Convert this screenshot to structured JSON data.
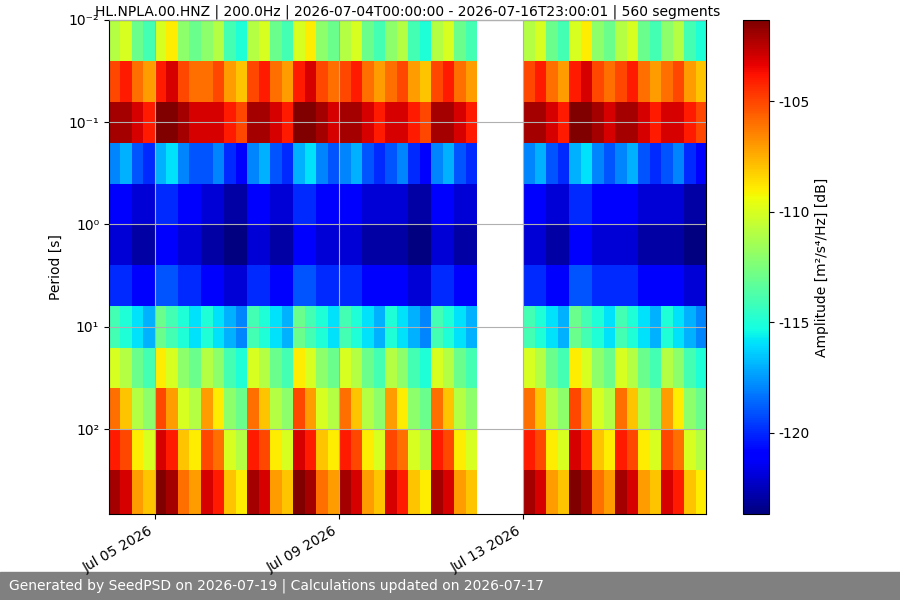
{
  "chart_data": {
    "type": "heatmap",
    "title": "HL.NPLA.00.HNZ | 200.0Hz | 2026-07-04T00:00:00 - 2026-07-16T23:00:01 | 560 segments",
    "y_label": "Period [s]",
    "colorbar_label": "Amplitude [m²/s⁴/Hz] [dB]",
    "footer": "Generated by SeedPSD on 2026-07-19 | Calculations updated on 2026-07-17",
    "log": "y",
    "grid": true,
    "color": "jet",
    "x": [
      "2026-07-04 00:00",
      "2026-07-04 06:00",
      "2026-07-04 12:00",
      "2026-07-04 18:00",
      "2026-07-05 00:00",
      "2026-07-05 06:00",
      "2026-07-05 12:00",
      "2026-07-05 18:00",
      "2026-07-06 00:00",
      "2026-07-06 06:00",
      "2026-07-06 12:00",
      "2026-07-06 18:00",
      "2026-07-07 00:00",
      "2026-07-07 06:00",
      "2026-07-07 12:00",
      "2026-07-07 18:00",
      "2026-07-08 00:00",
      "2026-07-08 06:00",
      "2026-07-08 12:00",
      "2026-07-08 18:00",
      "2026-07-09 00:00",
      "2026-07-09 06:00",
      "2026-07-09 12:00",
      "2026-07-09 18:00",
      "2026-07-10 00:00",
      "2026-07-10 06:00",
      "2026-07-10 12:00",
      "2026-07-10 18:00",
      "2026-07-11 00:00",
      "2026-07-11 06:00",
      "2026-07-11 12:00",
      "2026-07-11 18:00",
      "2026-07-12 00:00",
      "2026-07-12 06:00",
      "2026-07-12 12:00",
      "2026-07-12 18:00",
      "2026-07-13 00:00",
      "2026-07-13 06:00",
      "2026-07-13 12:00",
      "2026-07-13 18:00",
      "2026-07-14 00:00",
      "2026-07-14 06:00",
      "2026-07-14 12:00",
      "2026-07-14 18:00",
      "2026-07-15 00:00",
      "2026-07-15 06:00",
      "2026-07-15 12:00",
      "2026-07-15 18:00",
      "2026-07-16 00:00",
      "2026-07-16 06:00",
      "2026-07-16 12:00",
      "2026-07-16 18:00",
      "2026-07-17 00:00"
    ],
    "y": [
      0.01,
      0.025,
      0.063,
      0.16,
      0.4,
      1,
      2.5,
      6.3,
      16,
      40,
      100,
      250,
      680
    ],
    "cells": [
      [
        -111,
        -110,
        -113,
        -114,
        -110,
        -109,
        -112,
        -113,
        -112,
        -111,
        -114,
        -115,
        -111,
        -110,
        -113,
        -114,
        -110,
        -109,
        -112,
        -113,
        -111,
        -110,
        -113,
        -114,
        -112,
        -111,
        -114,
        -115,
        -111,
        -110,
        -113,
        -114,
        null,
        null,
        null,
        null,
        -111,
        -110,
        -113,
        -114,
        -110,
        -109,
        -112,
        -113,
        -111,
        -110,
        -113,
        -114,
        -112,
        -111,
        -114,
        -115
      ],
      [
        -105,
        -104,
        -106,
        -107,
        -104,
        -103,
        -105,
        -106,
        -106,
        -105,
        -107,
        -108,
        -105,
        -104,
        -106,
        -107,
        -104,
        -103,
        -105,
        -106,
        -105,
        -104,
        -106,
        -107,
        -106,
        -105,
        -107,
        -108,
        -105,
        -104,
        -106,
        -107,
        null,
        null,
        null,
        null,
        -105,
        -104,
        -106,
        -107,
        -104,
        -103,
        -105,
        -106,
        -105,
        -104,
        -106,
        -107,
        -106,
        -105,
        -107,
        -108
      ],
      [
        -102,
        -102,
        -103,
        -104,
        -101,
        -101,
        -102,
        -103,
        -103,
        -103,
        -104,
        -105,
        -102,
        -102,
        -103,
        -104,
        -101,
        -101,
        -102,
        -103,
        -102,
        -102,
        -103,
        -104,
        -103,
        -103,
        -104,
        -105,
        -102,
        -102,
        -103,
        -104,
        null,
        null,
        null,
        null,
        -102,
        -102,
        -103,
        -104,
        -101,
        -101,
        -102,
        -103,
        -102,
        -102,
        -103,
        -104,
        -103,
        -103,
        -104,
        -105
      ],
      [
        -118,
        -117,
        -119,
        -120,
        -117,
        -116,
        -118,
        -119,
        -119,
        -118,
        -120,
        -121,
        -118,
        -117,
        -119,
        -120,
        -117,
        -116,
        -118,
        -119,
        -118,
        -117,
        -119,
        -120,
        -119,
        -118,
        -120,
        -121,
        -118,
        -117,
        -119,
        -120,
        null,
        null,
        null,
        null,
        -118,
        -117,
        -119,
        -120,
        -117,
        -116,
        -118,
        -119,
        -118,
        -117,
        -119,
        -120,
        -119,
        -118,
        -120,
        -121
      ],
      [
        -121,
        -121,
        -122,
        -122,
        -120,
        -120,
        -121,
        -121,
        -122,
        -122,
        -123,
        -123,
        -121,
        -121,
        -122,
        -122,
        -120,
        -120,
        -121,
        -121,
        -121,
        -121,
        -122,
        -122,
        -122,
        -122,
        -123,
        -123,
        -121,
        -121,
        -122,
        -122,
        null,
        null,
        null,
        null,
        -121,
        -121,
        -122,
        -122,
        -120,
        -120,
        -121,
        -121,
        -121,
        -121,
        -122,
        -122,
        -122,
        -122,
        -123,
        -123
      ],
      [
        -122,
        -122,
        -123,
        -123,
        -121,
        -121,
        -122,
        -122,
        -123,
        -123,
        -124,
        -124,
        -122,
        -122,
        -123,
        -123,
        -121,
        -121,
        -122,
        -122,
        -122,
        -122,
        -123,
        -123,
        -123,
        -123,
        -124,
        -124,
        -122,
        -122,
        -123,
        -123,
        null,
        null,
        null,
        null,
        -122,
        -122,
        -123,
        -123,
        -121,
        -121,
        -122,
        -122,
        -122,
        -122,
        -123,
        -123,
        -123,
        -123,
        -124,
        -124
      ],
      [
        -120,
        -120,
        -121,
        -121,
        -119,
        -119,
        -120,
        -120,
        -121,
        -121,
        -122,
        -122,
        -120,
        -120,
        -121,
        -121,
        -119,
        -119,
        -120,
        -120,
        -120,
        -120,
        -121,
        -121,
        -121,
        -121,
        -122,
        -122,
        -120,
        -120,
        -121,
        -121,
        null,
        null,
        null,
        null,
        -120,
        -120,
        -121,
        -121,
        -119,
        -119,
        -120,
        -120,
        -120,
        -120,
        -121,
        -121,
        -121,
        -121,
        -122,
        -122
      ],
      [
        -114,
        -115,
        -116,
        -117,
        -113,
        -114,
        -115,
        -116,
        -115,
        -116,
        -117,
        -118,
        -114,
        -115,
        -116,
        -117,
        -113,
        -114,
        -115,
        -116,
        -114,
        -115,
        -116,
        -117,
        -115,
        -116,
        -117,
        -118,
        -114,
        -115,
        -116,
        -117,
        null,
        null,
        null,
        null,
        -114,
        -115,
        -116,
        -117,
        -113,
        -114,
        -115,
        -116,
        -114,
        -115,
        -116,
        -117,
        -115,
        -116,
        -117,
        -118
      ],
      [
        -110,
        -111,
        -113,
        -114,
        -109,
        -110,
        -112,
        -113,
        -111,
        -112,
        -114,
        -115,
        -110,
        -111,
        -113,
        -114,
        -109,
        -110,
        -112,
        -113,
        -110,
        -111,
        -113,
        -114,
        -111,
        -112,
        -114,
        -115,
        -110,
        -111,
        -113,
        -114,
        null,
        null,
        null,
        null,
        -110,
        -111,
        -113,
        -114,
        -109,
        -110,
        -112,
        -113,
        -110,
        -111,
        -113,
        -114,
        -111,
        -112,
        -114,
        -115
      ],
      [
        -106,
        -108,
        -111,
        -112,
        -105,
        -107,
        -110,
        -111,
        -107,
        -109,
        -112,
        -113,
        -106,
        -108,
        -111,
        -112,
        -105,
        -107,
        -110,
        -111,
        -106,
        -108,
        -111,
        -112,
        -107,
        -109,
        -112,
        -113,
        -106,
        -108,
        -111,
        -112,
        null,
        null,
        null,
        null,
        -106,
        -108,
        -111,
        -112,
        -105,
        -107,
        -110,
        -111,
        -106,
        -108,
        -111,
        -112,
        -107,
        -109,
        -112,
        -113
      ],
      [
        -104,
        -105,
        -109,
        -110,
        -103,
        -104,
        -108,
        -109,
        -105,
        -106,
        -110,
        -111,
        -104,
        -105,
        -109,
        -110,
        -103,
        -104,
        -108,
        -109,
        -104,
        -105,
        -109,
        -110,
        -105,
        -106,
        -110,
        -111,
        -104,
        -105,
        -109,
        -110,
        null,
        null,
        null,
        null,
        -104,
        -105,
        -109,
        -110,
        -103,
        -104,
        -108,
        -109,
        -104,
        -105,
        -109,
        -110,
        -105,
        -106,
        -110,
        -111
      ],
      [
        -102,
        -103,
        -107,
        -108,
        -101,
        -102,
        -106,
        -107,
        -103,
        -104,
        -108,
        -109,
        -102,
        -103,
        -107,
        -108,
        -101,
        -102,
        -106,
        -107,
        -102,
        -103,
        -107,
        -108,
        -103,
        -104,
        -108,
        -109,
        -102,
        -103,
        -107,
        -108,
        null,
        null,
        null,
        null,
        -102,
        -103,
        -107,
        -108,
        -101,
        -102,
        -106,
        -107,
        -102,
        -103,
        -107,
        -108,
        -103,
        -104,
        -108,
        -109
      ]
    ],
    "xlim": [
      "2026-07-04 00:00:00",
      "2026-07-16 23:00:01"
    ],
    "xticks": [
      {
        "value": "2026-07-05",
        "label": "Jul 05 2026"
      },
      {
        "value": "2026-07-09",
        "label": "Jul 09 2026"
      },
      {
        "value": "2026-07-13",
        "label": "Jul 13 2026"
      }
    ],
    "ylim": [
      680,
      0.01
    ],
    "yticks": [
      {
        "value": 0.01,
        "label": "10⁻²"
      },
      {
        "value": 0.1,
        "label": "10⁻¹"
      },
      {
        "value": 1,
        "label": "10⁰"
      },
      {
        "value": 10,
        "label": "10¹"
      },
      {
        "value": 100,
        "label": "10²"
      }
    ],
    "colorbar_range": [
      -123.7,
      -101.3
    ],
    "colorbar_ticks": [
      -120,
      -115,
      -110,
      -105
    ]
  }
}
